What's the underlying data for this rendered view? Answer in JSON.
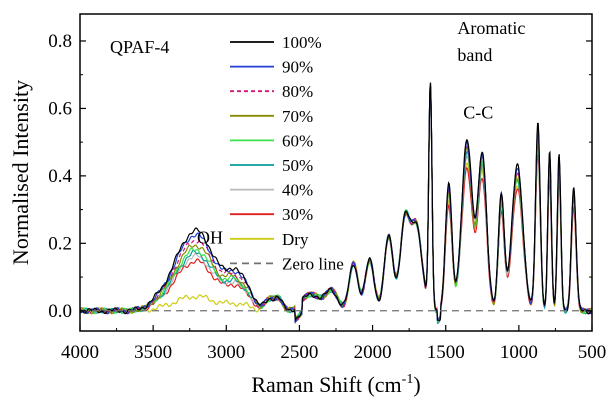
{
  "chart_data": {
    "type": "line",
    "title": "",
    "sample_label": "QPAF-4",
    "xlabel": "Raman Shift (cm",
    "xlabel_sup": "-1",
    "xlabel_close": ")",
    "ylabel": "Normalised Intensity",
    "xlim": [
      4000,
      500
    ],
    "x_reversed": true,
    "ylim": [
      -0.06,
      0.88
    ],
    "x_ticks": [
      4000,
      3500,
      3000,
      2500,
      2000,
      1500,
      1000,
      500
    ],
    "x_tick_labels": [
      "4000",
      "3500",
      "3000",
      "2500",
      "2000",
      "1500",
      "1000",
      "500"
    ],
    "y_ticks": [
      0.0,
      0.2,
      0.4,
      0.6,
      0.8
    ],
    "y_tick_labels": [
      "0.0",
      "0.2",
      "0.4",
      "0.6",
      "0.8"
    ],
    "grid": false,
    "legend_position": "top-left",
    "annotations": [
      {
        "text": "OH",
        "x": 3200,
        "y": 0.2
      },
      {
        "text": "Aromatic",
        "x": 1420,
        "y": 0.82
      },
      {
        "text": "band",
        "x": 1420,
        "y": 0.74
      },
      {
        "text": "C-C",
        "x": 1380,
        "y": 0.57
      }
    ],
    "peaks": [
      {
        "x": 3500,
        "w": 50,
        "h": 0.008
      },
      {
        "x": 3300,
        "w": 110,
        "h": 0.14
      },
      {
        "x": 3180,
        "w": 90,
        "h": 0.13
      },
      {
        "x": 3050,
        "w": 90,
        "h": 0.07
      },
      {
        "x": 2940,
        "w": 55,
        "h": 0.08
      },
      {
        "x": 2850,
        "w": 45,
        "h": 0.05
      },
      {
        "x": 2700,
        "w": 35,
        "h": 0.035
      },
      {
        "x": 2640,
        "w": 25,
        "h": 0.03
      },
      {
        "x": 2420,
        "w": 60,
        "h": 0.05
      },
      {
        "x": 2280,
        "w": 40,
        "h": 0.06
      },
      {
        "x": 2130,
        "w": 30,
        "h": 0.14
      },
      {
        "x": 2020,
        "w": 30,
        "h": 0.15
      },
      {
        "x": 1890,
        "w": 30,
        "h": 0.22
      },
      {
        "x": 1780,
        "w": 32,
        "h": 0.26
      },
      {
        "x": 1700,
        "w": 38,
        "h": 0.25
      },
      {
        "x": 1605,
        "w": 11,
        "h": 0.66
      },
      {
        "x": 1480,
        "w": 22,
        "h": 0.37
      },
      {
        "x": 1355,
        "w": 36,
        "h": 0.5
      },
      {
        "x": 1250,
        "w": 30,
        "h": 0.46
      },
      {
        "x": 1120,
        "w": 20,
        "h": 0.34
      },
      {
        "x": 1010,
        "w": 38,
        "h": 0.42
      },
      {
        "x": 870,
        "w": 16,
        "h": 0.54
      },
      {
        "x": 790,
        "w": 12,
        "h": 0.47
      },
      {
        "x": 725,
        "w": 12,
        "h": 0.45
      },
      {
        "x": 625,
        "w": 16,
        "h": 0.36
      }
    ],
    "series": [
      {
        "name": "100%",
        "color": "#000000",
        "dash": "",
        "oh_scale": 1.0,
        "mid_scale": 1.02,
        "seed": 1
      },
      {
        "name": "90%",
        "color": "#1f3fd6",
        "dash": "",
        "oh_scale": 0.95,
        "mid_scale": 1.0,
        "seed": 2
      },
      {
        "name": "80%",
        "color": "#d4147a",
        "dash": "4,3",
        "oh_scale": 0.88,
        "mid_scale": 0.98,
        "seed": 3
      },
      {
        "name": "70%",
        "color": "#8a8a00",
        "dash": "",
        "oh_scale": 0.82,
        "mid_scale": 0.97,
        "seed": 4
      },
      {
        "name": "60%",
        "color": "#39e04a",
        "dash": "",
        "oh_scale": 0.76,
        "mid_scale": 0.95,
        "seed": 5
      },
      {
        "name": "50%",
        "color": "#0b9c9c",
        "dash": "",
        "oh_scale": 0.72,
        "mid_scale": 0.93,
        "seed": 6
      },
      {
        "name": "40%",
        "color": "#b8b8b8",
        "dash": "",
        "oh_scale": 0.68,
        "mid_scale": 0.92,
        "seed": 7
      },
      {
        "name": "30%",
        "color": "#e01e1e",
        "dash": "",
        "oh_scale": 0.62,
        "mid_scale": 0.85,
        "seed": 8
      },
      {
        "name": "Dry",
        "color": "#cccc14",
        "dash": "",
        "oh_scale": 0.18,
        "mid_scale": 0.88,
        "seed": 9
      },
      {
        "name": "Zero line",
        "color": "#707070",
        "dash": "7,5",
        "zero_line": true
      }
    ]
  }
}
